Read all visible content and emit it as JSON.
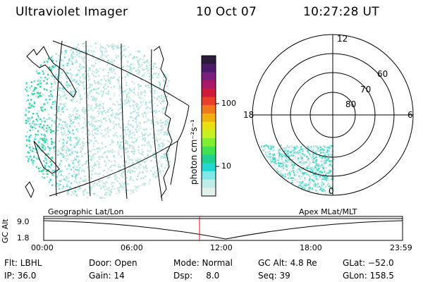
{
  "header": {
    "instrument": "Ultraviolet Imager",
    "date": "10 Oct 07",
    "time": "10:27:28 UT"
  },
  "colorbar": {
    "label": "photon cm⁻²s⁻¹",
    "ticks": [
      "100",
      "10"
    ],
    "colors": [
      "#2b1a3a",
      "#4b1b6a",
      "#7a1f7a",
      "#a8196a",
      "#d01a3a",
      "#e8402a",
      "#f07a1a",
      "#f0b010",
      "#e8e010",
      "#c8f020",
      "#80ee30",
      "#40e050",
      "#20d090",
      "#20d8d0",
      "#80e6e6",
      "#c0ece8",
      "#e4f0ee"
    ]
  },
  "polar_plot": {
    "hour_labels": [
      "12",
      "18",
      "6",
      "0"
    ],
    "lat_labels": [
      "60",
      "70",
      "80"
    ]
  },
  "altitude_strip": {
    "left_label": "Geographic Lat/Lon",
    "right_label": "Apex MLat/MLT",
    "axis_label": "GC Alt",
    "y_ticks": [
      "9.0",
      "1.8"
    ],
    "x_ticks": [
      "00:00",
      "06:00",
      "12:00",
      "18:00",
      "23:59"
    ],
    "marker_color": "#ff0000"
  },
  "status": {
    "flt": "Flt: LBHL",
    "ip": "IP: 36.0",
    "door": "Door: Open",
    "gain": "Gain: 14",
    "mode": "Mode: Normal",
    "dsp": "Dsp:     8.0",
    "gc_alt": "GC Alt: 4.8 Re",
    "seq": "Seq: 39",
    "glat": "GLat: −52.0",
    "glon": "GLon: 158.5"
  }
}
